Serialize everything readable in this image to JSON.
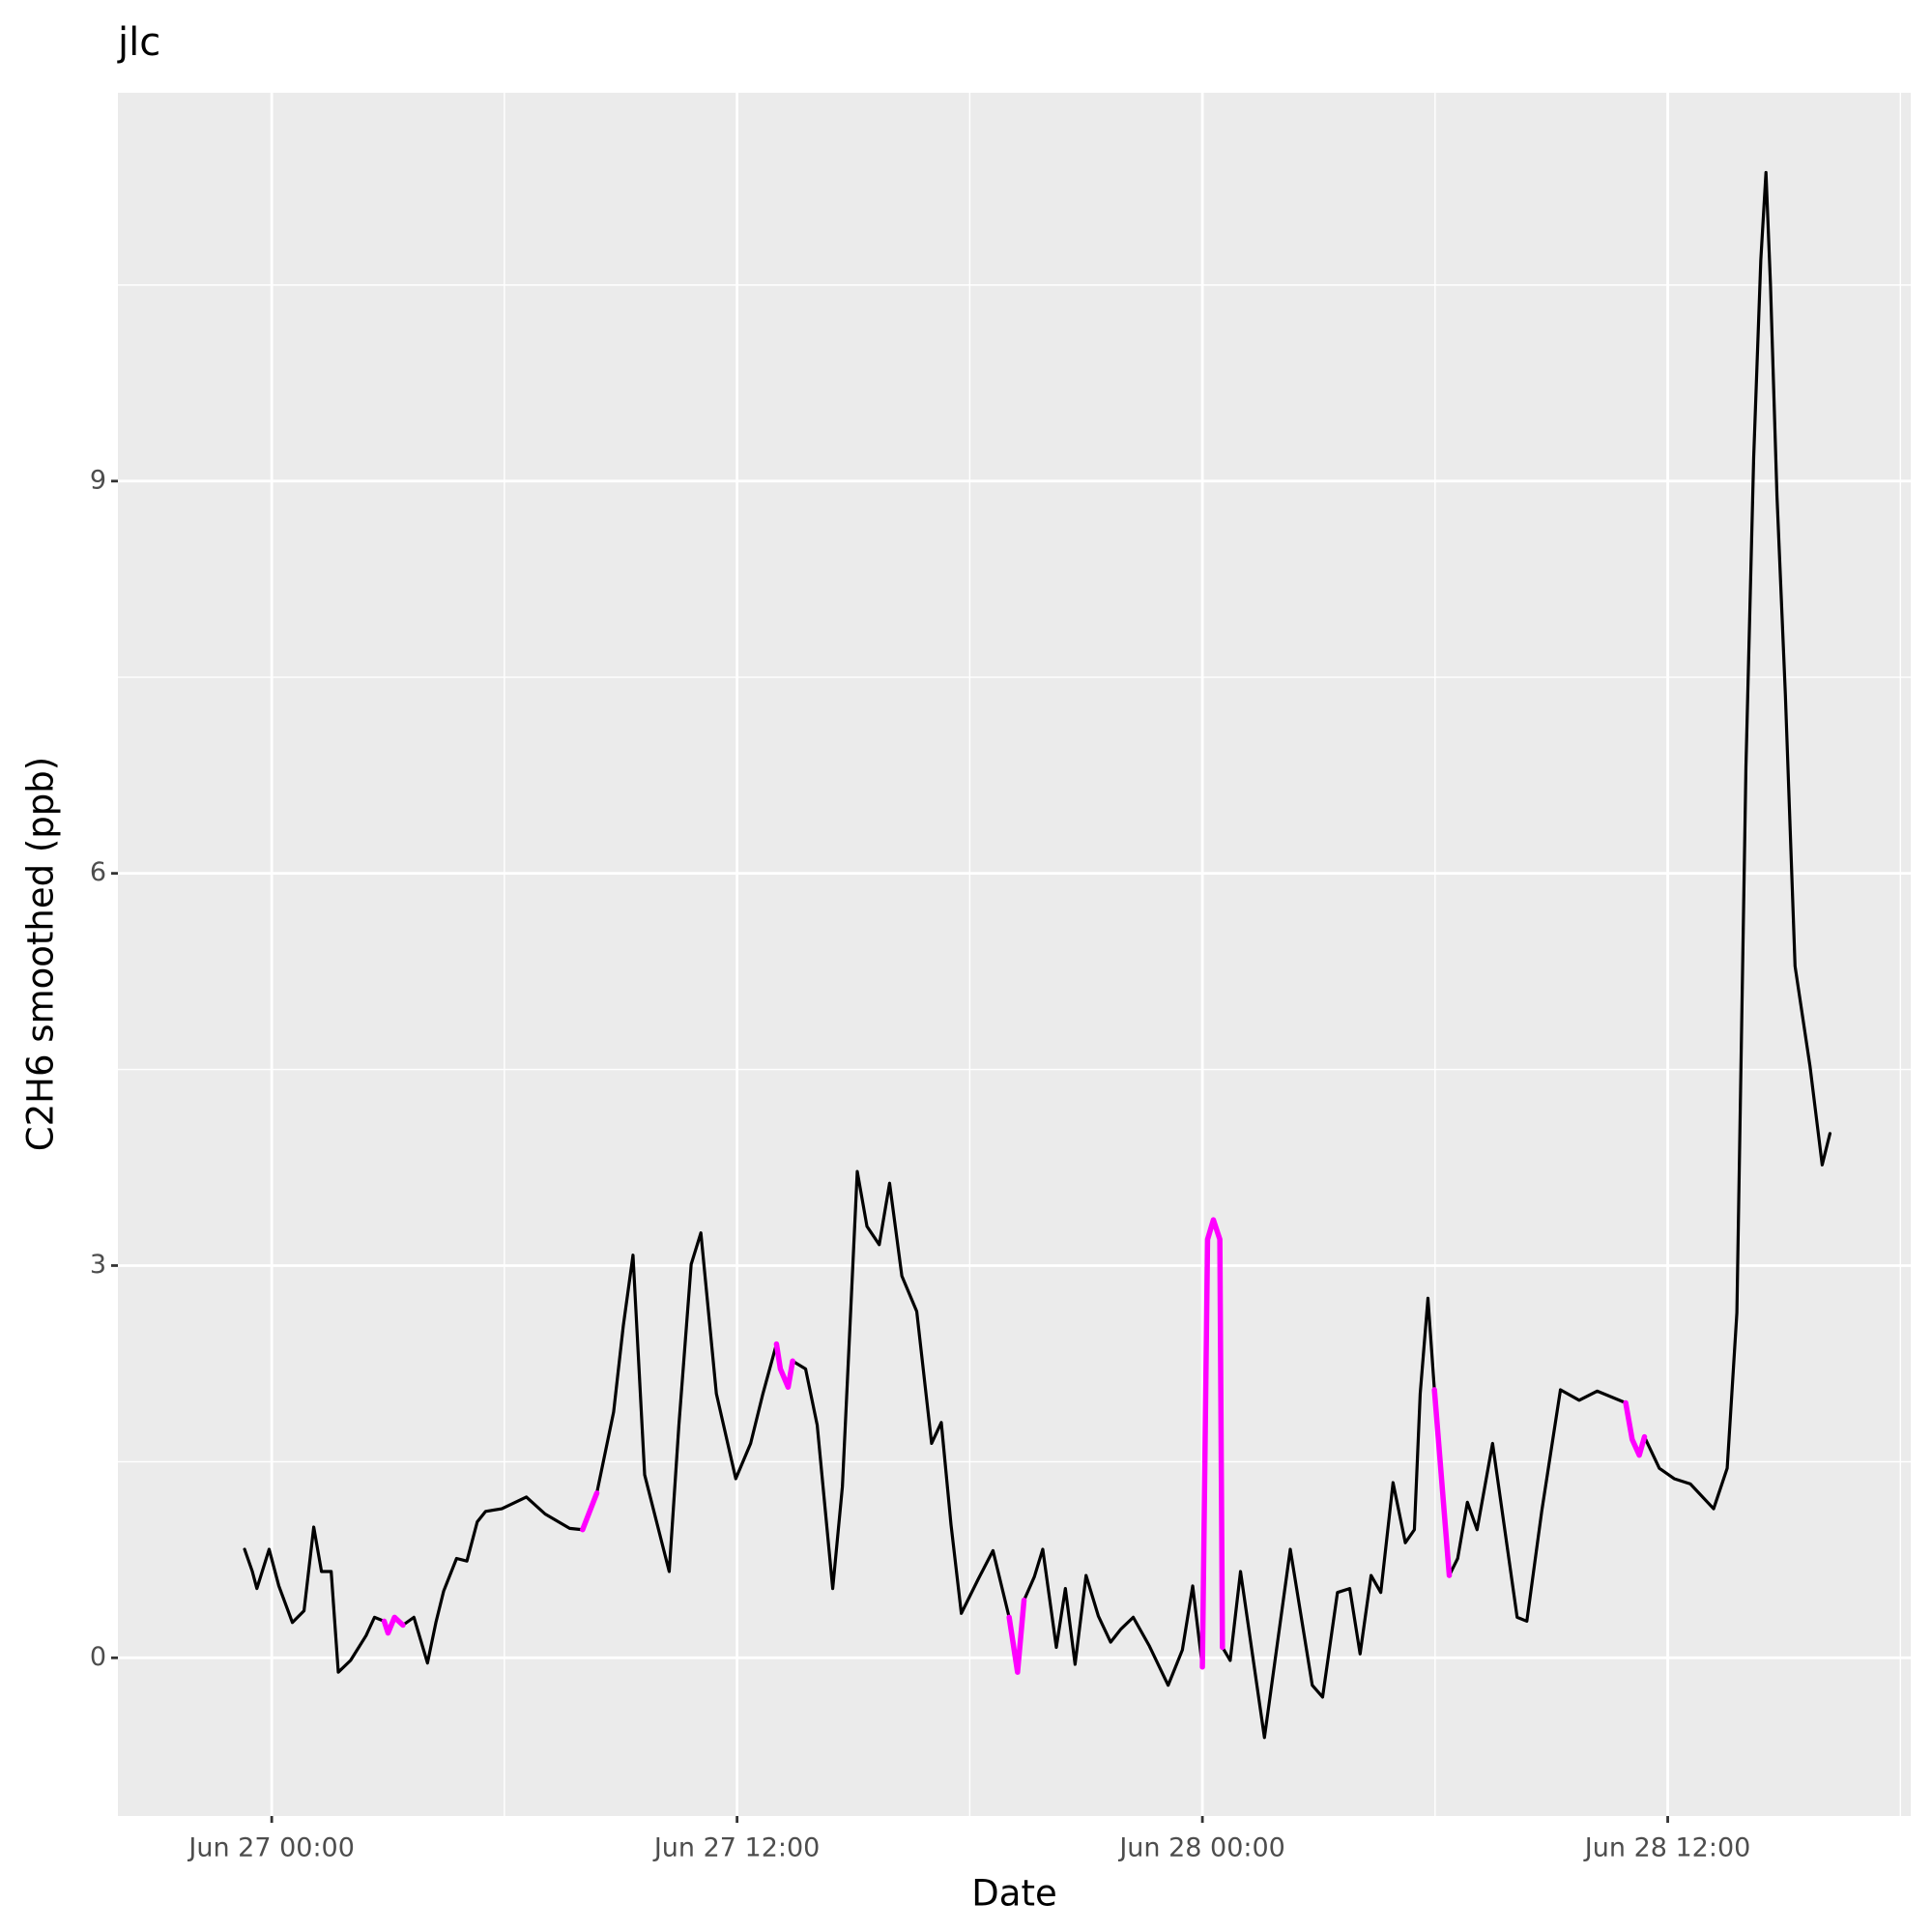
{
  "chart_data": {
    "type": "line",
    "title": "jlc",
    "x_label": "Date",
    "y_label": "C2H6 smoothed (ppb)",
    "x": [
      "Jun 26 23:18",
      "Jun 26 23:30",
      "Jun 26 23:37",
      "Jun 26 23:56",
      "Jun 27 00:11",
      "Jun 27 00:32",
      "Jun 27 00:50",
      "Jun 27 01:05",
      "Jun 27 01:17",
      "Jun 27 01:32",
      "Jun 27 01:43",
      "Jun 27 02:02",
      "Jun 27 02:26",
      "Jun 27 02:39",
      "Jun 27 02:54",
      "Jun 27 03:00",
      "Jun 27 03:10",
      "Jun 27 03:23",
      "Jun 27 03:40",
      "Jun 27 04:01",
      "Jun 27 04:14",
      "Jun 27 04:26",
      "Jun 27 04:46",
      "Jun 27 05:02",
      "Jun 27 05:18",
      "Jun 27 05:31",
      "Jun 27 05:56",
      "Jun 27 06:34",
      "Jun 27 07:03",
      "Jun 27 07:41",
      "Jun 27 08:01",
      "Jun 27 08:23",
      "Jun 27 08:49",
      "Jun 27 09:04",
      "Jun 27 09:19",
      "Jun 27 09:37",
      "Jun 27 10:15",
      "Jun 27 10:30",
      "Jun 27 10:49",
      "Jun 27 11:04",
      "Jun 27 11:28",
      "Jun 27 11:58",
      "Jun 27 12:21",
      "Jun 27 12:40",
      "Jun 27 13:01",
      "Jun 27 13:07",
      "Jun 27 13:19",
      "Jun 27 13:26",
      "Jun 27 13:46",
      "Jun 27 14:04",
      "Jun 27 14:28",
      "Jun 27 14:43",
      "Jun 27 15:06",
      "Jun 27 15:21",
      "Jun 27 15:40",
      "Jun 27 15:56",
      "Jun 27 16:15",
      "Jun 27 16:38",
      "Jun 27 17:01",
      "Jun 27 17:16",
      "Jun 27 17:31",
      "Jun 27 17:47",
      "Jun 27 18:13",
      "Jun 27 18:36",
      "Jun 27 19:01",
      "Jun 27 19:14",
      "Jun 27 19:24",
      "Jun 27 19:40",
      "Jun 27 19:53",
      "Jun 27 20:14",
      "Jun 27 20:28",
      "Jun 27 20:43",
      "Jun 27 21:00",
      "Jun 27 21:19",
      "Jun 27 21:38",
      "Jun 27 21:54",
      "Jun 27 22:13",
      "Jun 27 22:38",
      "Jun 27 23:07",
      "Jun 27 23:29",
      "Jun 27 23:45",
      "Jun 28 00:00",
      "Jun 28 00:08",
      "Jun 28 00:17",
      "Jun 28 00:27",
      "Jun 28 00:31",
      "Jun 28 00:43",
      "Jun 28 00:59",
      "Jun 28 01:36",
      "Jun 28 02:16",
      "Jun 28 02:50",
      "Jun 28 03:06",
      "Jun 28 03:29",
      "Jun 28 03:48",
      "Jun 28 04:04",
      "Jun 28 04:21",
      "Jun 28 04:36",
      "Jun 28 04:55",
      "Jun 28 05:14",
      "Jun 28 05:28",
      "Jun 28 05:37",
      "Jun 28 05:49",
      "Jun 28 05:59",
      "Jun 28 06:22",
      "Jun 28 06:35",
      "Jun 28 06:50",
      "Jun 28 07:05",
      "Jun 28 07:29",
      "Jun 28 08:07",
      "Jun 28 08:22",
      "Jun 28 08:45",
      "Jun 28 09:14",
      "Jun 28 09:43",
      "Jun 28 10:11",
      "Jun 28 10:55",
      "Jun 28 11:05",
      "Jun 28 11:16",
      "Jun 28 11:24",
      "Jun 28 11:47",
      "Jun 28 12:10",
      "Jun 28 12:35",
      "Jun 28 13:11",
      "Jun 28 13:32",
      "Jun 28 13:47",
      "Jun 28 14:01",
      "Jun 28 14:13",
      "Jun 28 14:24",
      "Jun 28 14:32",
      "Jun 28 14:39",
      "Jun 28 14:49",
      "Jun 28 15:02",
      "Jun 28 15:17",
      "Jun 28 15:40",
      "Jun 28 15:59",
      "Jun 28 16:11"
    ],
    "series": [
      {
        "color": "#000000",
        "values": [
          0.83,
          0.66,
          0.53,
          0.83,
          0.55,
          0.27,
          0.36,
          1.0,
          0.66,
          0.66,
          -0.11,
          -0.02,
          0.17,
          0.31,
          0.28,
          0.19,
          0.31,
          0.25,
          0.31,
          -0.04,
          0.27,
          0.51,
          0.76,
          0.74,
          1.04,
          1.12,
          1.14,
          1.23,
          1.1,
          0.99,
          0.98,
          1.26,
          1.88,
          2.54,
          3.08,
          1.4,
          0.66,
          1.78,
          3.01,
          3.25,
          2.02,
          1.37,
          1.64,
          2.02,
          2.4,
          2.21,
          2.07,
          2.27,
          2.21,
          1.78,
          0.53,
          1.31,
          3.72,
          3.3,
          3.16,
          3.63,
          2.92,
          2.65,
          1.64,
          1.8,
          1.02,
          0.34,
          0.6,
          0.82,
          0.31,
          -0.11,
          0.44,
          0.62,
          0.83,
          0.08,
          0.53,
          -0.05,
          0.63,
          0.32,
          0.12,
          0.22,
          0.31,
          0.09,
          -0.21,
          0.06,
          0.55,
          -0.07,
          3.2,
          3.35,
          3.2,
          0.08,
          -0.02,
          0.66,
          -0.61,
          0.83,
          -0.21,
          -0.3,
          0.5,
          0.53,
          0.03,
          0.63,
          0.5,
          1.34,
          0.88,
          0.98,
          2.02,
          2.75,
          2.05,
          0.63,
          0.76,
          1.19,
          0.98,
          1.64,
          0.31,
          0.28,
          1.12,
          2.05,
          1.97,
          2.04,
          1.95,
          1.67,
          1.55,
          1.69,
          1.45,
          1.37,
          1.33,
          1.14,
          1.45,
          2.64,
          6.81,
          9.18,
          10.69,
          11.36,
          10.5,
          8.89,
          7.37,
          5.29,
          4.53,
          3.77,
          4.01
        ]
      },
      {
        "color": "#ff00ff",
        "values": [
          null,
          null,
          null,
          null,
          null,
          null,
          null,
          null,
          null,
          null,
          null,
          null,
          null,
          null,
          0.28,
          0.19,
          0.31,
          0.25,
          null,
          null,
          null,
          null,
          null,
          null,
          null,
          null,
          null,
          null,
          null,
          null,
          0.98,
          1.26,
          null,
          null,
          null,
          null,
          null,
          null,
          null,
          null,
          null,
          null,
          null,
          null,
          2.4,
          2.21,
          2.07,
          2.27,
          null,
          null,
          null,
          null,
          null,
          null,
          null,
          null,
          null,
          null,
          null,
          null,
          null,
          null,
          null,
          null,
          0.31,
          -0.11,
          0.44,
          null,
          null,
          null,
          null,
          null,
          null,
          null,
          null,
          null,
          null,
          null,
          null,
          null,
          null,
          -0.07,
          3.2,
          3.35,
          3.2,
          0.08,
          null,
          null,
          null,
          null,
          null,
          null,
          null,
          null,
          null,
          null,
          null,
          null,
          null,
          null,
          null,
          null,
          2.05,
          0.63,
          null,
          null,
          null,
          null,
          null,
          null,
          null,
          null,
          null,
          null,
          1.95,
          1.67,
          1.55,
          1.69,
          null,
          null,
          null,
          null,
          null,
          null,
          null,
          null,
          null,
          null,
          null,
          null,
          null,
          null,
          null,
          null,
          null
        ]
      }
    ],
    "xlim": [
      "Jun 26 20:02",
      "Jun 28 18:16"
    ],
    "xticks": [
      "Jun 27 00:00",
      "Jun 27 12:00",
      "Jun 28 00:00",
      "Jun 28 12:00"
    ],
    "ylim": [
      -1.21,
      11.97
    ],
    "yticks": [
      0,
      3,
      6,
      9
    ],
    "grid": true
  }
}
